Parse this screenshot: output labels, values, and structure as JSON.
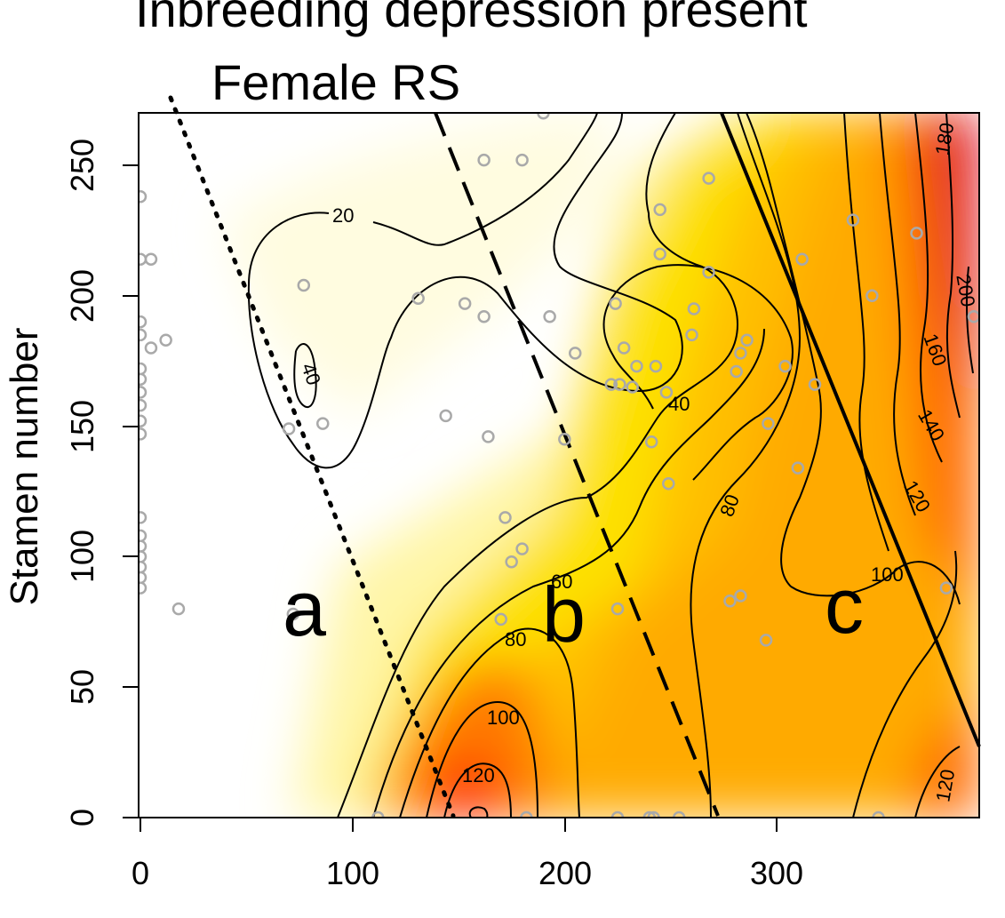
{
  "chart_data": {
    "type": "contour",
    "title": "Inbreeding depression present",
    "subtitle": "Female RS",
    "xlabel": "",
    "ylabel": "Stamen number",
    "xlim": [
      0,
      395
    ],
    "ylim": [
      0,
      270
    ],
    "x_ticks": [
      "0",
      "100",
      "200",
      "300"
    ],
    "y_ticks": [
      "0",
      "50",
      "100",
      "150",
      "200",
      "250"
    ],
    "contour_levels": [
      "20",
      "40",
      "40",
      "60",
      "80",
      "80",
      "100",
      "100",
      "120",
      "120",
      "120",
      "140",
      "160",
      "180",
      "200"
    ],
    "region_labels": [
      "a",
      "b",
      "c"
    ],
    "colors": {
      "low": "#ffffff",
      "mid1": "#fff6a8",
      "mid2": "#fde100",
      "mid3": "#ffaa00",
      "high1": "#ff5a00",
      "high2": "#d4001c"
    },
    "points": [
      [
        0,
        238
      ],
      [
        0,
        214
      ],
      [
        5,
        214
      ],
      [
        0,
        190
      ],
      [
        0,
        185
      ],
      [
        5,
        180
      ],
      [
        12,
        183
      ],
      [
        0,
        172
      ],
      [
        0,
        168
      ],
      [
        0,
        163
      ],
      [
        0,
        158
      ],
      [
        0,
        152
      ],
      [
        0,
        147
      ],
      [
        0,
        115
      ],
      [
        0,
        108
      ],
      [
        0,
        104
      ],
      [
        0,
        100
      ],
      [
        0,
        96
      ],
      [
        0,
        92
      ],
      [
        0,
        88
      ],
      [
        18,
        80
      ],
      [
        77,
        204
      ],
      [
        70,
        149
      ],
      [
        86,
        151
      ],
      [
        72,
        78
      ],
      [
        131,
        199
      ],
      [
        144,
        154
      ],
      [
        153,
        197
      ],
      [
        162,
        192
      ],
      [
        164,
        146
      ],
      [
        162,
        252
      ],
      [
        180,
        252
      ],
      [
        190,
        270
      ],
      [
        172,
        115
      ],
      [
        175,
        98
      ],
      [
        180,
        103
      ],
      [
        170,
        76
      ],
      [
        193,
        192
      ],
      [
        200,
        145
      ],
      [
        205,
        178
      ],
      [
        224,
        197
      ],
      [
        222,
        166
      ],
      [
        226,
        166
      ],
      [
        228,
        180
      ],
      [
        234,
        173
      ],
      [
        232,
        165
      ],
      [
        245,
        233
      ],
      [
        245,
        216
      ],
      [
        243,
        173
      ],
      [
        248,
        163
      ],
      [
        241,
        144
      ],
      [
        249,
        128
      ],
      [
        268,
        245
      ],
      [
        268,
        209
      ],
      [
        261,
        195
      ],
      [
        260,
        185
      ],
      [
        281,
        171
      ],
      [
        283,
        178
      ],
      [
        286,
        183
      ],
      [
        296,
        151
      ],
      [
        304,
        173
      ],
      [
        310,
        134
      ],
      [
        318,
        166
      ],
      [
        312,
        214
      ],
      [
        336,
        229
      ],
      [
        345,
        200
      ],
      [
        366,
        224
      ],
      [
        393,
        192
      ],
      [
        278,
        83
      ],
      [
        283,
        85
      ],
      [
        295,
        68
      ],
      [
        380,
        88
      ],
      [
        225,
        80
      ],
      [
        112,
        0
      ],
      [
        182,
        0
      ],
      [
        225,
        0
      ],
      [
        240,
        0
      ],
      [
        242,
        0
      ],
      [
        254,
        0
      ],
      [
        348,
        0
      ]
    ]
  }
}
